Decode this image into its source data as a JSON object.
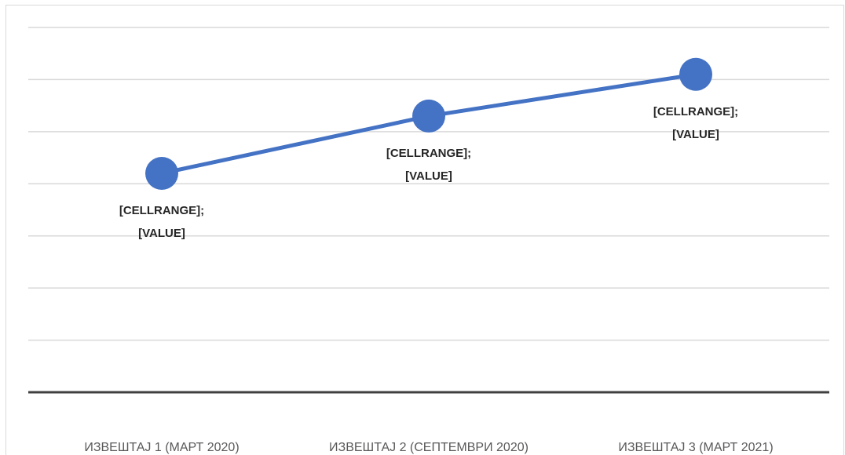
{
  "chart_data": {
    "type": "line",
    "categories": [
      "ИЗВЕШТАЈ 1 (МАРТ 2020)",
      "ИЗВЕШТАЈ 2 (СЕПТЕМВРИ 2020)",
      "ИЗВЕШТАЈ 3 (МАРТ 2021)"
    ],
    "values": [
      4.2,
      5.3,
      6.1
    ],
    "labels": [
      [
        "[CELLRANGE];",
        "[VALUE]"
      ],
      [
        "[CELLRANGE];",
        "[VALUE]"
      ],
      [
        "[CELLRANGE];",
        "[VALUE]"
      ]
    ],
    "color": "#4472c4",
    "ylim": [
      0,
      7
    ],
    "yticks": [
      0,
      1,
      2,
      3,
      4,
      5,
      6,
      7
    ],
    "grid": true
  }
}
